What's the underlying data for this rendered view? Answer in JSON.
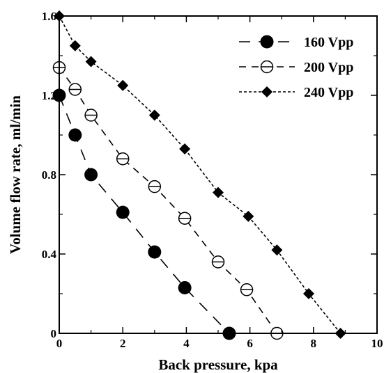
{
  "chart_data": {
    "type": "line",
    "xlabel": "Back pressure, kpa",
    "ylabel": "Volume flow rate, ml/min",
    "xlim": [
      0,
      10
    ],
    "ylim": [
      0,
      1.6
    ],
    "x_ticks": [
      "0",
      "2",
      "4",
      "6",
      "8",
      "10"
    ],
    "y_ticks": [
      "0",
      "0.4",
      "0.8",
      "1.2",
      "1.6"
    ],
    "x_tick_values": [
      0,
      2,
      4,
      6,
      8,
      10
    ],
    "y_tick_values": [
      0,
      0.4,
      0.8,
      1.2,
      1.6
    ],
    "grid": false,
    "legend_position": "top-right",
    "series": [
      {
        "name": "160 Vpp",
        "marker": "filled-circle",
        "line_style": "long-dash",
        "x": [
          0,
          0.5,
          1.0,
          2.0,
          3.0,
          3.95,
          5.35
        ],
        "y": [
          1.2,
          1.0,
          0.8,
          0.61,
          0.41,
          0.23,
          0.0
        ]
      },
      {
        "name": "200 Vpp",
        "marker": "open-circle-bar",
        "line_style": "dash",
        "x": [
          0,
          0.5,
          1.0,
          2.0,
          3.0,
          3.95,
          5.0,
          5.9,
          6.85
        ],
        "y": [
          1.34,
          1.23,
          1.1,
          0.88,
          0.74,
          0.58,
          0.36,
          0.22,
          0.0
        ]
      },
      {
        "name": "240 Vpp",
        "marker": "filled-diamond",
        "line_style": "dotted",
        "x": [
          0,
          0.5,
          1.0,
          2.0,
          3.0,
          3.95,
          5.0,
          5.95,
          6.85,
          7.85,
          8.85
        ],
        "y": [
          1.6,
          1.45,
          1.37,
          1.25,
          1.1,
          0.93,
          0.71,
          0.59,
          0.42,
          0.2,
          0.0
        ]
      }
    ]
  }
}
